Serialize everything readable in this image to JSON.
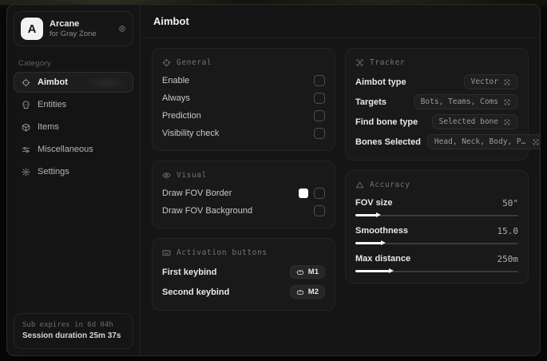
{
  "app": {
    "logo_letter": "A",
    "name": "Arcane",
    "subtitle": "for Gray Zone"
  },
  "sidebar": {
    "category_label": "Category",
    "items": [
      {
        "label": "Aimbot",
        "icon": "crosshair",
        "active": true
      },
      {
        "label": "Entities",
        "icon": "skull",
        "active": false
      },
      {
        "label": "Items",
        "icon": "box",
        "active": false
      },
      {
        "label": "Miscellaneous",
        "icon": "sliders",
        "active": false
      },
      {
        "label": "Settings",
        "icon": "gear",
        "active": false
      }
    ],
    "footer": {
      "line1": "Sub expires in 6d 04h",
      "line2": "Session duration 25m 37s"
    }
  },
  "header": {
    "title": "Aimbot"
  },
  "sections": {
    "general": {
      "title": "General",
      "icon": "crosshair",
      "rows": [
        {
          "label": "Enable",
          "checked": false
        },
        {
          "label": "Always",
          "checked": false
        },
        {
          "label": "Prediction",
          "checked": false
        },
        {
          "label": "Visibility check",
          "checked": false
        }
      ]
    },
    "visual": {
      "title": "Visual",
      "icon": "eye",
      "rows": [
        {
          "label": "Draw FOV Border",
          "swatch": "#ffffff",
          "checked": false
        },
        {
          "label": "Draw FOV Background",
          "checked": false
        }
      ]
    },
    "activation": {
      "title": "Activation buttons",
      "icon": "keyboard",
      "rows": [
        {
          "label": "First keybind",
          "key": "M1"
        },
        {
          "label": "Second keybind",
          "key": "M2"
        }
      ]
    },
    "tracker": {
      "title": "Tracker",
      "icon": "user-scan",
      "rows": [
        {
          "label": "Aimbot type",
          "value": "Vector"
        },
        {
          "label": "Targets",
          "value": "Bots, Teams, Coms"
        },
        {
          "label": "Find bone type",
          "value": "Selected bone"
        },
        {
          "label": "Bones Selected",
          "value": "Head, Neck, Body, Pe.."
        }
      ]
    },
    "accuracy": {
      "title": "Accuracy",
      "icon": "triangle",
      "rows": [
        {
          "label": "FOV size",
          "value": "50°",
          "percent": 13
        },
        {
          "label": "Smoothness",
          "value": "15.0",
          "percent": 16
        },
        {
          "label": "Max distance",
          "value": "250m",
          "percent": 21
        }
      ]
    }
  },
  "colors": {
    "accent_swatch": "#ffffff",
    "window_bg": "#141414",
    "card_bg": "#191919"
  }
}
